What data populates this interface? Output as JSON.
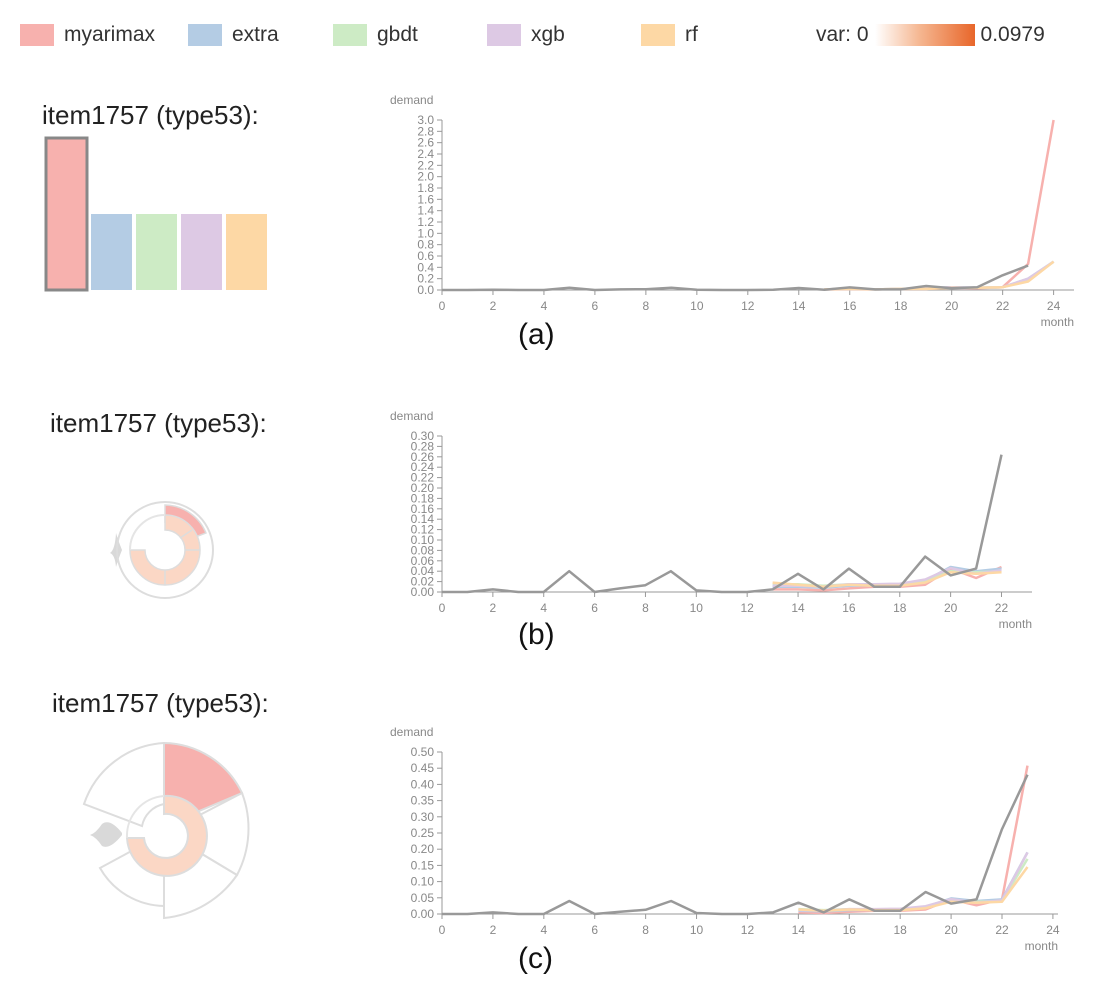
{
  "legend": {
    "items": [
      {
        "label": "myarimax",
        "color": "#f7b1ae"
      },
      {
        "label": "extra",
        "color": "#b4cce4"
      },
      {
        "label": "gbdt",
        "color": "#cdebc5"
      },
      {
        "label": "xgb",
        "color": "#ddc9e4"
      },
      {
        "label": "rf",
        "color": "#fdd8a5"
      }
    ],
    "var_prefix": "var: 0",
    "var_max": "0.0979"
  },
  "panels": [
    {
      "title": "item1757 (type53):",
      "caption": "(a)"
    },
    {
      "title": "item1757 (type53):",
      "caption": "(b)"
    },
    {
      "title": "item1757 (type53):",
      "caption": "(c)"
    }
  ],
  "bar_glyph": {
    "values": [
      1.0,
      0.5,
      0.5,
      0.5,
      0.5
    ],
    "colors": [
      "#f7b1ae",
      "#b4cce4",
      "#cdebc5",
      "#ddc9e4",
      "#fdd8a5"
    ],
    "selected_index": 0
  },
  "chart_data": [
    {
      "type": "line",
      "ylabel": "demand",
      "xlabel": "month",
      "xlim": [
        0,
        24.8
      ],
      "ylim": [
        0,
        3.0
      ],
      "xticks": [
        0,
        2,
        4,
        6,
        8,
        10,
        12,
        14,
        16,
        18,
        20,
        22,
        24
      ],
      "yticks": [
        "0.0",
        "0.2",
        "0.4",
        "0.6",
        "0.8",
        "1.0",
        "1.2",
        "1.4",
        "1.6",
        "1.8",
        "2.0",
        "2.2",
        "2.4",
        "2.6",
        "2.8",
        "3.0"
      ],
      "series": [
        {
          "color": "#999999",
          "x": [
            0,
            1,
            2,
            3,
            4,
            5,
            6,
            7,
            8,
            9,
            10,
            11,
            12,
            13,
            14,
            15,
            16,
            17,
            18,
            19,
            20,
            21,
            22,
            23
          ],
          "y": [
            0.0,
            0.0,
            0.005,
            0.0,
            0.0,
            0.04,
            0.0,
            0.01,
            0.015,
            0.04,
            0.005,
            0.0,
            0.0,
            0.005,
            0.035,
            0.005,
            0.045,
            0.01,
            0.01,
            0.07,
            0.03,
            0.05,
            0.26,
            0.43
          ]
        },
        {
          "color": "#f7b1ae",
          "x": [
            15,
            16,
            17,
            18,
            19,
            20,
            21,
            22,
            23,
            24
          ],
          "y": [
            0.01,
            0.01,
            0.01,
            0.02,
            0.02,
            0.04,
            0.03,
            0.05,
            0.46,
            3.0
          ]
        },
        {
          "color": "#b4cce4",
          "x": [
            15,
            16,
            17,
            18,
            19,
            20,
            21,
            22,
            23,
            24
          ],
          "y": [
            0.01,
            0.02,
            0.01,
            0.02,
            0.03,
            0.05,
            0.04,
            0.05,
            0.2,
            0.5
          ]
        },
        {
          "color": "#cdebc5",
          "x": [
            15,
            16,
            17,
            18,
            19,
            20,
            21,
            22,
            23,
            24
          ],
          "y": [
            0.01,
            0.02,
            0.01,
            0.02,
            0.03,
            0.04,
            0.04,
            0.05,
            0.18,
            0.5
          ]
        },
        {
          "color": "#ddc9e4",
          "x": [
            15,
            16,
            17,
            18,
            19,
            20,
            21,
            22,
            23,
            24
          ],
          "y": [
            0.01,
            0.02,
            0.01,
            0.02,
            0.03,
            0.05,
            0.04,
            0.05,
            0.2,
            0.5
          ]
        },
        {
          "color": "#fdd8a5",
          "x": [
            15,
            16,
            17,
            18,
            19,
            20,
            21,
            22,
            23,
            24
          ],
          "y": [
            0.01,
            0.02,
            0.01,
            0.02,
            0.02,
            0.04,
            0.04,
            0.05,
            0.15,
            0.5
          ]
        }
      ]
    },
    {
      "type": "line",
      "ylabel": "demand",
      "xlabel": "month",
      "xlim": [
        0,
        23.2
      ],
      "ylim": [
        0,
        0.3
      ],
      "xticks": [
        0,
        2,
        4,
        6,
        8,
        10,
        12,
        14,
        16,
        18,
        20,
        22
      ],
      "yticks": [
        "0.00",
        "0.02",
        "0.04",
        "0.06",
        "0.08",
        "0.10",
        "0.12",
        "0.14",
        "0.16",
        "0.18",
        "0.20",
        "0.22",
        "0.24",
        "0.26",
        "0.28",
        "0.30"
      ],
      "series": [
        {
          "color": "#999999",
          "x": [
            0,
            1,
            2,
            3,
            4,
            5,
            6,
            7,
            8,
            9,
            10,
            11,
            12,
            13,
            14,
            15,
            16,
            17,
            18,
            19,
            20,
            21,
            22
          ],
          "y": [
            0.0,
            0.0,
            0.005,
            0.0,
            0.0,
            0.04,
            0.0,
            0.007,
            0.013,
            0.04,
            0.003,
            0.0,
            0.0,
            0.005,
            0.035,
            0.005,
            0.045,
            0.01,
            0.01,
            0.068,
            0.032,
            0.045,
            0.264
          ]
        },
        {
          "color": "#f7b1ae",
          "x": [
            13,
            14,
            15,
            16,
            17,
            18,
            19,
            20,
            21,
            22
          ],
          "y": [
            0.005,
            0.005,
            0.003,
            0.007,
            0.01,
            0.01,
            0.014,
            0.045,
            0.027,
            0.048
          ]
        },
        {
          "color": "#b4cce4",
          "x": [
            13,
            14,
            15,
            16,
            17,
            18,
            19,
            20,
            21,
            22
          ],
          "y": [
            0.01,
            0.01,
            0.008,
            0.012,
            0.013,
            0.014,
            0.022,
            0.048,
            0.04,
            0.045
          ]
        },
        {
          "color": "#cdebc5",
          "x": [
            13,
            14,
            15,
            16,
            17,
            18,
            19,
            20,
            21,
            22
          ],
          "y": [
            0.015,
            0.015,
            0.012,
            0.015,
            0.012,
            0.013,
            0.02,
            0.04,
            0.038,
            0.04
          ]
        },
        {
          "color": "#ddc9e4",
          "x": [
            13,
            14,
            15,
            16,
            17,
            18,
            19,
            20,
            21,
            22
          ],
          "y": [
            0.012,
            0.012,
            0.01,
            0.015,
            0.015,
            0.016,
            0.024,
            0.046,
            0.035,
            0.042
          ]
        },
        {
          "color": "#fdd8a5",
          "x": [
            13,
            14,
            15,
            16,
            17,
            18,
            19,
            20,
            21,
            22
          ],
          "y": [
            0.018,
            0.014,
            0.01,
            0.014,
            0.012,
            0.012,
            0.018,
            0.038,
            0.035,
            0.038
          ]
        }
      ]
    },
    {
      "type": "line",
      "ylabel": "demand",
      "xlabel": "month",
      "xlim": [
        0,
        24.2
      ],
      "ylim": [
        0,
        0.5
      ],
      "xticks": [
        0,
        2,
        4,
        6,
        8,
        10,
        12,
        14,
        16,
        18,
        20,
        22,
        24
      ],
      "yticks": [
        "0.00",
        "0.05",
        "0.10",
        "0.15",
        "0.20",
        "0.25",
        "0.30",
        "0.35",
        "0.40",
        "0.45",
        "0.50"
      ],
      "series": [
        {
          "color": "#999999",
          "x": [
            0,
            1,
            2,
            3,
            4,
            5,
            6,
            7,
            8,
            9,
            10,
            11,
            12,
            13,
            14,
            15,
            16,
            17,
            18,
            19,
            20,
            21,
            22,
            23
          ],
          "y": [
            0.0,
            0.0,
            0.005,
            0.0,
            0.0,
            0.04,
            0.0,
            0.007,
            0.013,
            0.04,
            0.003,
            0.0,
            0.0,
            0.005,
            0.035,
            0.005,
            0.045,
            0.01,
            0.01,
            0.068,
            0.032,
            0.045,
            0.262,
            0.43
          ]
        },
        {
          "color": "#f7b1ae",
          "x": [
            14,
            15,
            16,
            17,
            18,
            19,
            20,
            21,
            22,
            23
          ],
          "y": [
            0.005,
            0.003,
            0.007,
            0.01,
            0.01,
            0.014,
            0.045,
            0.027,
            0.045,
            0.458
          ]
        },
        {
          "color": "#b4cce4",
          "x": [
            14,
            15,
            16,
            17,
            18,
            19,
            20,
            21,
            22,
            23
          ],
          "y": [
            0.01,
            0.008,
            0.012,
            0.013,
            0.014,
            0.022,
            0.048,
            0.04,
            0.045,
            0.19
          ]
        },
        {
          "color": "#cdebc5",
          "x": [
            14,
            15,
            16,
            17,
            18,
            19,
            20,
            21,
            22,
            23
          ],
          "y": [
            0.015,
            0.012,
            0.015,
            0.012,
            0.013,
            0.02,
            0.04,
            0.038,
            0.04,
            0.17
          ]
        },
        {
          "color": "#ddc9e4",
          "x": [
            14,
            15,
            16,
            17,
            18,
            19,
            20,
            21,
            22,
            23
          ],
          "y": [
            0.012,
            0.01,
            0.015,
            0.015,
            0.016,
            0.024,
            0.046,
            0.035,
            0.042,
            0.19
          ]
        },
        {
          "color": "#fdd8a5",
          "x": [
            14,
            15,
            16,
            17,
            18,
            19,
            20,
            21,
            22,
            23
          ],
          "y": [
            0.014,
            0.01,
            0.014,
            0.012,
            0.012,
            0.018,
            0.038,
            0.035,
            0.038,
            0.145
          ]
        }
      ]
    }
  ]
}
